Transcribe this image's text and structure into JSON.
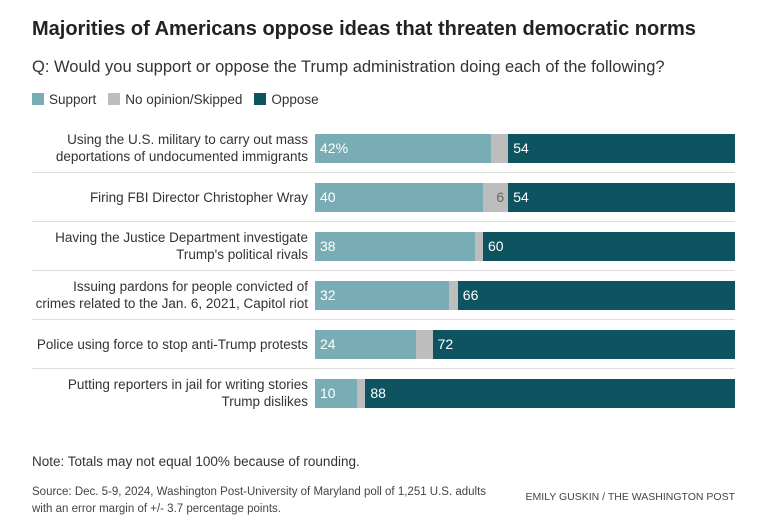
{
  "chart_data": {
    "type": "bar",
    "orientation": "horizontal-stacked",
    "title": "Majorities of Americans oppose ideas that threaten democratic norms",
    "subtitle": "Q: Would you support or oppose the Trump administration doing each of the following?",
    "legend": [
      {
        "name": "Support",
        "color": "#78adb6"
      },
      {
        "name": "No opinion/Skipped",
        "color": "#bdbdbd"
      },
      {
        "name": "Oppose",
        "color": "#0e5460"
      }
    ],
    "categories": [
      "Using the U.S. military to carry out mass deportations of undocumented immigrants",
      "Firing FBI Director Christopher Wray",
      "Having the Justice Department investigate Trump's political rivals",
      "Issuing pardons for people convicted of crimes related to the Jan. 6, 2021, Capitol riot",
      "Police using force to stop anti-Trump protests",
      "Putting reporters in jail for writing stories Trump dislikes"
    ],
    "series": [
      {
        "name": "Support",
        "values": [
          42,
          40,
          38,
          32,
          24,
          10
        ],
        "labels": [
          "42%",
          "40",
          "38",
          "32",
          "24",
          "10"
        ]
      },
      {
        "name": "No opinion/Skipped",
        "values": [
          4,
          6,
          2,
          2,
          4,
          2
        ],
        "labels": [
          "",
          "6",
          "",
          "",
          "",
          ""
        ]
      },
      {
        "name": "Oppose",
        "values": [
          54,
          54,
          60,
          66,
          72,
          88
        ],
        "labels": [
          "54",
          "54",
          "60",
          "66",
          "72",
          "88"
        ]
      }
    ],
    "xlim": [
      0,
      100
    ],
    "note": "Note: Totals may not equal 100% because of rounding.",
    "source": "Source: Dec. 5-9, 2024, Washington Post-University of Maryland poll of 1,251 U.S. adults with an error margin of +/- 3.7 percentage points.",
    "credit": "EMILY GUSKIN / THE WASHINGTON POST"
  }
}
